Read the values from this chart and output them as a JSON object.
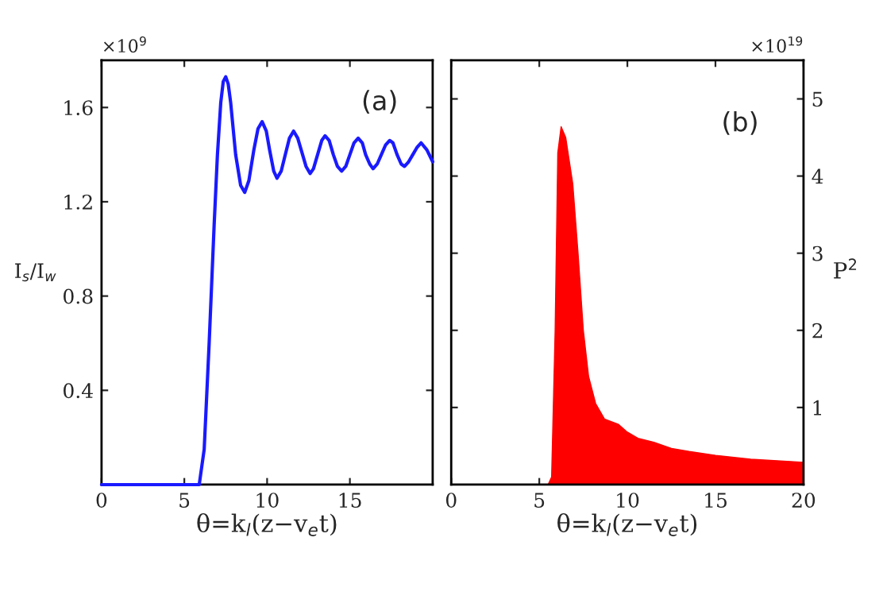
{
  "chart_data": [
    {
      "type": "line",
      "xlabel": "θ=k$_{l}$(z−v$_{e}$t)",
      "ylabel": "I$_{s}$/I$_{w}$",
      "annotations": [
        "×10$^{9}$",
        "(a)"
      ],
      "x": [
        0,
        5.9,
        6.2,
        6.5,
        6.8,
        7.0,
        7.2,
        7.35,
        7.5,
        7.65,
        7.8,
        8.1,
        8.4,
        8.65,
        8.9,
        9.2,
        9.45,
        9.7,
        9.95,
        10.15,
        10.4,
        10.6,
        10.85,
        11.1,
        11.35,
        11.6,
        11.85,
        12.1,
        12.35,
        12.6,
        12.8,
        13.05,
        13.3,
        13.5,
        13.75,
        14.0,
        14.25,
        14.5,
        14.75,
        15.0,
        15.25,
        15.5,
        15.75,
        15.95,
        16.2,
        16.4,
        16.65,
        16.9,
        17.15,
        17.4,
        17.6,
        17.85,
        18.1,
        18.3,
        18.55,
        18.8,
        19.05,
        19.3,
        19.65,
        20
      ],
      "series": [
        {
          "color": "#1a1aff",
          "values": [
            0,
            0,
            0.15,
            0.6,
            1.1,
            1.4,
            1.62,
            1.71,
            1.73,
            1.7,
            1.62,
            1.4,
            1.27,
            1.24,
            1.29,
            1.42,
            1.51,
            1.54,
            1.5,
            1.42,
            1.33,
            1.3,
            1.33,
            1.4,
            1.47,
            1.5,
            1.47,
            1.41,
            1.35,
            1.32,
            1.34,
            1.4,
            1.46,
            1.48,
            1.46,
            1.4,
            1.35,
            1.33,
            1.35,
            1.4,
            1.45,
            1.47,
            1.45,
            1.4,
            1.36,
            1.34,
            1.36,
            1.4,
            1.44,
            1.46,
            1.45,
            1.4,
            1.36,
            1.35,
            1.37,
            1.4,
            1.43,
            1.45,
            1.42,
            1.37
          ]
        }
      ],
      "xlim": [
        0,
        20
      ],
      "xticks": [
        0,
        5,
        10,
        15
      ],
      "ylim": [
        0,
        1.8
      ],
      "yticks": [
        0.4,
        0.8,
        1.2,
        1.6
      ],
      "grid": false,
      "marker": "none",
      "line_style": "solid"
    },
    {
      "type": "area",
      "xlabel": "θ=k$_{l}$(z−v$_{e}$t)",
      "ylabel": "P$^{2}$",
      "annotations": [
        "×10$^{19}$",
        "(b)"
      ],
      "x": [
        0,
        5.5,
        5.7,
        5.9,
        6.05,
        6.24,
        6.5,
        6.9,
        7.2,
        7.5,
        7.8,
        8.2,
        8.7,
        9.5,
        10.0,
        10.6,
        11.5,
        12.5,
        13.5,
        15.0,
        17.0,
        20.0
      ],
      "series": [
        {
          "color": "#ff0000",
          "values": [
            0,
            0,
            0.1,
            2.0,
            4.3,
            4.64,
            4.5,
            3.9,
            3.0,
            2.0,
            1.4,
            1.05,
            0.85,
            0.78,
            0.68,
            0.6,
            0.55,
            0.47,
            0.43,
            0.38,
            0.33,
            0.29
          ]
        }
      ],
      "xlim": [
        0,
        20
      ],
      "xticks": [
        0,
        5,
        10,
        15,
        20
      ],
      "ylim": [
        0,
        5.5
      ],
      "yticks": [
        1,
        2,
        3,
        4,
        5
      ],
      "grid": false
    }
  ]
}
